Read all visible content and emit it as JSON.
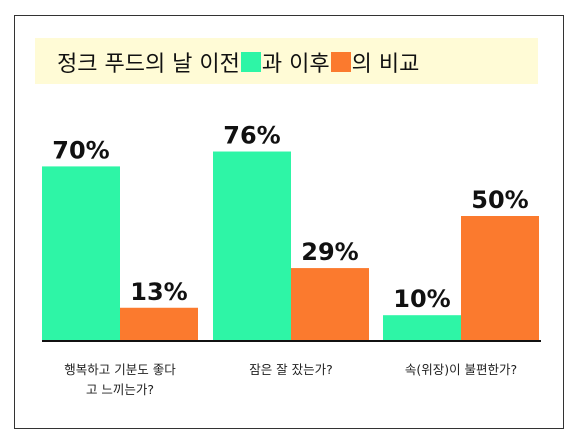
{
  "chart_data": {
    "type": "bar",
    "title": "정크 푸드의 날 이전",
    "title_mid": "과 이후",
    "title_end": "의 비교",
    "categories": [
      [
        "행복하고 기분도 좋다",
        "고 느끼는가?"
      ],
      [
        "잠은 잘 잤는가?"
      ],
      [
        "속(위장)이 불편한가?"
      ]
    ],
    "series": [
      {
        "values": [
          70,
          76,
          10
        ],
        "labels": [
          "70%",
          "76%",
          "10%"
        ],
        "color": "#2ef5a6"
      },
      {
        "values": [
          13,
          29,
          50
        ],
        "labels": [
          "13%",
          "29%",
          "50%"
        ],
        "color": "#fb7a2e"
      }
    ],
    "ylim": [
      0,
      100
    ]
  }
}
